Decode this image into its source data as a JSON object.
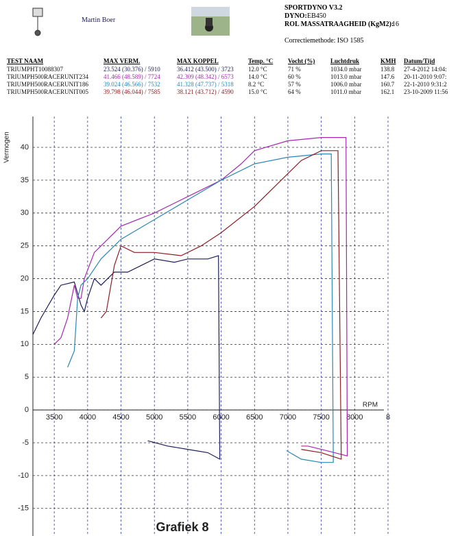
{
  "header": {
    "name": "Martin Boer",
    "program": "SPORTDYNO V3.2",
    "dyno_label": "DYNO:",
    "dyno_value": "EB450",
    "inertia_label": "ROL MASSATRAAGHEID (KgM2):",
    "inertia_value": "16",
    "correction": "Correctiemethode: ISO 1585"
  },
  "table": {
    "columns": [
      "TEST NAAM",
      "MAX VERM.",
      "MAX KOPPEL",
      "Temp. °C",
      "Vocht (%)",
      "Luchtdruk",
      "KMH",
      "Datum/Tijd"
    ],
    "rows": [
      [
        "TRIUMPHT10088307",
        "23.524 (30.376) / 5910",
        "36.412 (43.500) / 3723",
        "12.0 °C",
        "71 %",
        "1034.0 mbar",
        "138.8",
        "27-4-2012 14:04:"
      ],
      [
        "TRIUMPH500RACERUNIT234",
        "41.466 (48.589) / 7724",
        "42.309 (48.342) / 6573",
        "14.0 °C",
        "60 %",
        "1013.0 mbar",
        "147.6",
        "20-11-2010 9:07:"
      ],
      [
        "TRIUMPH500RACERUNIT186",
        "39.024 (46.566) / 7532",
        "41.328 (47.737) / 5318",
        "8.2 °C",
        "57 %",
        "1006.0 mbar",
        "160.7",
        "22-1-2010 9:31:2"
      ],
      [
        "TRIUMPH500RACERUNIT005",
        "39.798 (46.044) / 7585",
        "38.121 (43.712) / 4590",
        "15.0 °C",
        "64 %",
        "1011.0 mbar",
        "162.1",
        "23-10-2009 11:56"
      ]
    ]
  },
  "chart_data": {
    "type": "line",
    "title": "Grafiek 8",
    "y_label": "Vermogen",
    "x_label": "RPM",
    "xlim": [
      3180,
      8500
    ],
    "ylim": [
      -19.2,
      44.7
    ],
    "xticks": [
      3500,
      4000,
      4500,
      5000,
      5500,
      6000,
      6500,
      7000,
      7500,
      8000,
      {
        "value": 8500,
        "label": "8"
      }
    ],
    "yticks": [
      -15,
      -10,
      -5,
      0,
      5,
      10,
      15,
      20,
      25,
      30,
      35,
      40
    ],
    "grid": true,
    "series": [
      {
        "color": "#1c1c5a",
        "x": [
          3180,
          3300,
          3500,
          3600,
          3800,
          3900,
          3950,
          4000,
          4100,
          4200,
          4400,
          4600,
          4800,
          5000,
          5300,
          5500,
          5800,
          5960,
          5980,
          5800,
          5500,
          5200,
          4900
        ],
        "values": [
          11.5,
          14,
          17.5,
          19,
          19.5,
          16,
          15,
          17,
          20,
          19,
          21,
          21,
          22,
          23,
          22.5,
          23,
          23,
          23.5,
          -7.5,
          -6.5,
          -6,
          -5.5,
          -4.7
        ]
      },
      {
        "color": "#a626b0",
        "x": [
          3500,
          3600,
          3700,
          3800,
          3850,
          3900,
          3950,
          4100,
          4300,
          4500,
          5000,
          5500,
          6000,
          6300,
          6500,
          7000,
          7500,
          7700,
          7870,
          7890,
          7700,
          7500,
          7300,
          7200
        ],
        "values": [
          10,
          11,
          14,
          19,
          17,
          17,
          20,
          24,
          26,
          28,
          30,
          32.5,
          35,
          37.5,
          39.5,
          41,
          41.5,
          41.5,
          41.5,
          -7,
          -6.5,
          -6,
          -5.5,
          -5.5
        ]
      },
      {
        "color": "#2a86b4",
        "x": [
          3700,
          3800,
          3850,
          3900,
          4000,
          4200,
          4500,
          5000,
          5500,
          6000,
          6500,
          7000,
          7500,
          7650,
          7680,
          7500,
          7200,
          6980
        ],
        "values": [
          6.5,
          9,
          17,
          19,
          20,
          23,
          26,
          29,
          32,
          35,
          37.5,
          38.5,
          39,
          39,
          -8,
          -8,
          -7.5,
          -6.2
        ]
      },
      {
        "color": "#8e1c22",
        "x": [
          4200,
          4280,
          4400,
          4500,
          4700,
          5000,
          5400,
          5700,
          6000,
          6500,
          7000,
          7200,
          7500,
          7750,
          7800,
          7500,
          7200
        ],
        "values": [
          14,
          15,
          22,
          25,
          24,
          24,
          23.5,
          25,
          27,
          31,
          36,
          38,
          39.5,
          39.5,
          -7.5,
          -6.5,
          -6
        ]
      }
    ]
  }
}
